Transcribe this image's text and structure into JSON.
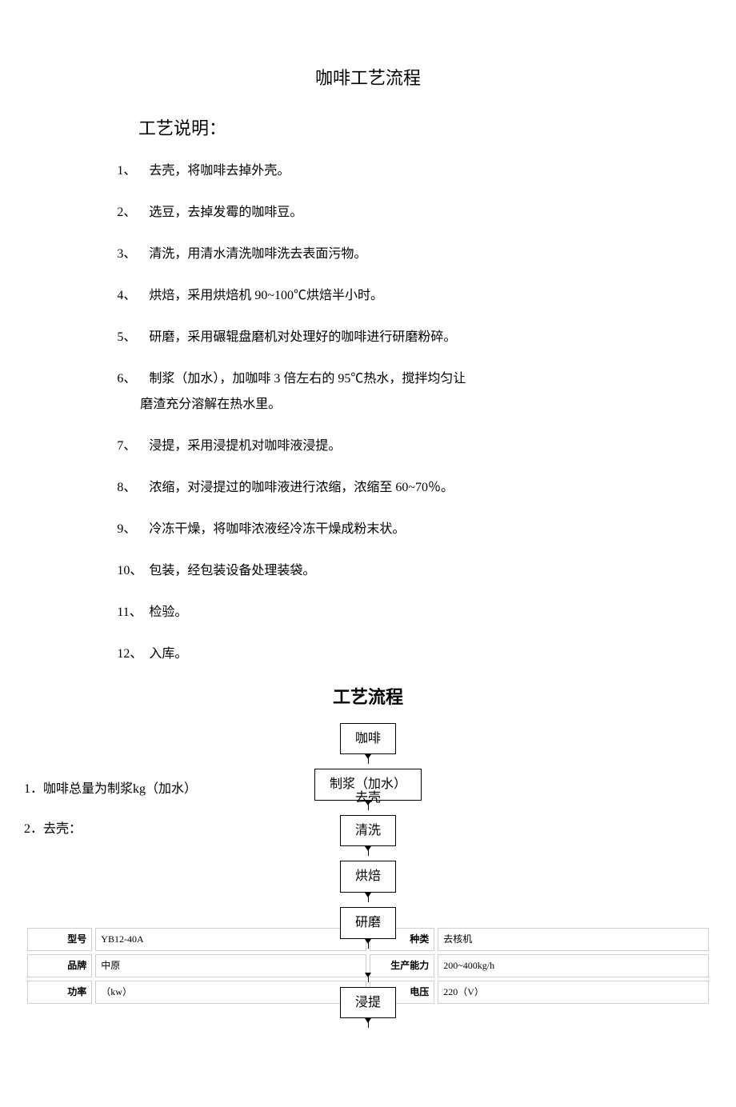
{
  "title": "咖啡工艺流程",
  "subheading": "工艺说明：",
  "steps": [
    {
      "n": "1、",
      "text": "去壳，将咖啡去掉外壳。"
    },
    {
      "n": "2、",
      "text": "选豆，去掉发霉的咖啡豆。"
    },
    {
      "n": "3、",
      "text": "清洗，用清水清洗咖啡洗去表面污物。"
    },
    {
      "n": "4、",
      "text": "烘焙，采用烘焙机 90~100℃烘焙半小时。"
    },
    {
      "n": "5、",
      "text": "研磨，采用碾辊盘磨机对处理好的咖啡进行研磨粉碎。"
    },
    {
      "n": "6、",
      "text": "制浆（加水），加咖啡 3 倍左右的 95℃热水，搅拌均匀让磨渣充分溶解在热水里。",
      "wrap": true
    },
    {
      "n": "7、",
      "text": "浸提，采用浸提机对咖啡液浸提。"
    },
    {
      "n": "8、",
      "text": "浓缩，对浸提过的咖啡液进行浓缩，浓缩至 60~70％。"
    },
    {
      "n": "9、",
      "text": "冷冻干燥，将咖啡浓液经冷冻干燥成粉末状。"
    },
    {
      "n": "10、",
      "text": "包装，经包装设备处理装袋。"
    },
    {
      "n": "11、",
      "text": "检验。"
    },
    {
      "n": "12、",
      "text": "入库。"
    }
  ],
  "flow_heading": "工艺流程",
  "flowchart": {
    "type": "flowchart",
    "node_border_color": "#000000",
    "node_background": "#ffffff",
    "node_fontsize": 16,
    "arrow_color": "#000000",
    "nodes": [
      {
        "id": "n0",
        "label": "咖啡"
      },
      {
        "id": "n1",
        "label": "制浆（加水）",
        "overlap_label": "去壳"
      },
      {
        "id": "n2",
        "label": "清洗"
      },
      {
        "id": "n3",
        "label": "烘焙"
      },
      {
        "id": "n4",
        "label": "研磨"
      },
      {
        "id": "n5",
        "label": "浸提"
      }
    ]
  },
  "overlay_lines": {
    "line1": "1．咖啡总量为制浆kg（加水）",
    "line1_sub": "去壳",
    "line2": "2．去壳："
  },
  "specs": {
    "columns_left": [
      "型号",
      "品牌",
      "功率"
    ],
    "columns_right": [
      "种类",
      "生产能力",
      "电压"
    ],
    "rows": [
      {
        "l_label": "型号",
        "l_val": "YB12-40A",
        "r_label": "种类",
        "r_val": "去核机"
      },
      {
        "l_label": "品牌",
        "l_val": "中原",
        "r_label": "生产能力",
        "r_val": "200~400kg/h"
      },
      {
        "l_label": "功率",
        "l_val": "（kw）",
        "r_label": "电压",
        "r_val": "220（V）"
      }
    ],
    "border_color": "#cfcfcf",
    "label_fontsize": 12,
    "value_fontsize": 12
  },
  "colors": {
    "text": "#000000",
    "background": "#ffffff",
    "table_border": "#cfcfcf"
  }
}
